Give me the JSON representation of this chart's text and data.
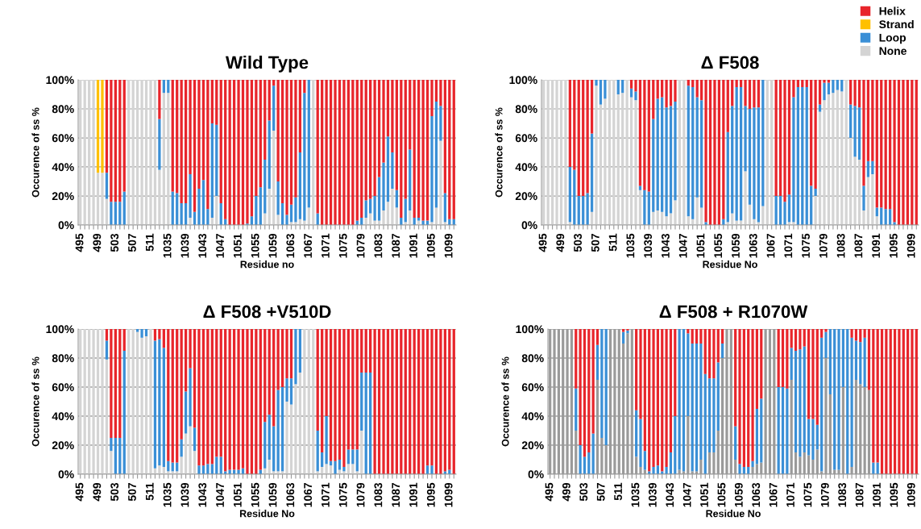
{
  "chart_data": [
    {
      "type": "bar",
      "stacked": true,
      "title": "Wild Type",
      "xlabel": "Residue no",
      "ylabel": "Occurence of ss %",
      "grid": "y",
      "ylim": [
        0,
        100
      ],
      "yticks": [
        {
          "value": 0,
          "label": "0%"
        },
        {
          "value": 20,
          "label": "20%"
        },
        {
          "value": 40,
          "label": "40%"
        },
        {
          "value": 60,
          "label": "60%"
        },
        {
          "value": 80,
          "label": "80%"
        },
        {
          "value": 100,
          "label": "100%"
        }
      ],
      "categories": [
        "495",
        null,
        null,
        null,
        "499",
        null,
        null,
        null,
        "503",
        null,
        null,
        null,
        "507",
        null,
        null,
        null,
        "511",
        null,
        null,
        null,
        "1035",
        null,
        null,
        null,
        "1039",
        null,
        null,
        null,
        "1043",
        null,
        null,
        null,
        "1047",
        null,
        null,
        null,
        "1051",
        null,
        null,
        null,
        "1055",
        null,
        null,
        null,
        "1059",
        null,
        null,
        null,
        "1063",
        null,
        null,
        null,
        "1067",
        null,
        null,
        null,
        "1071",
        null,
        null,
        null,
        "1075",
        null,
        null,
        null,
        "1079",
        null,
        null,
        null,
        "1083",
        null,
        null,
        null,
        "1087",
        null,
        null,
        null,
        "1091",
        null,
        null,
        null,
        "1095",
        null,
        null,
        null,
        "1099",
        null
      ],
      "series": [
        {
          "color": "#d4d4d4",
          "values": [
            100,
            100,
            100,
            100,
            36,
            36,
            18,
            0,
            0,
            0,
            0,
            100,
            100,
            100,
            100,
            100,
            100,
            100,
            38,
            91,
            91,
            0,
            0,
            0,
            0,
            5,
            0,
            0,
            0,
            0,
            5,
            20,
            0,
            0,
            0,
            0,
            0,
            0,
            0,
            0,
            0,
            0,
            8,
            25,
            65,
            7,
            0,
            0,
            2,
            2,
            4,
            3,
            12,
            100,
            0,
            0,
            0,
            0,
            0,
            0,
            0,
            0,
            0,
            0,
            0,
            5,
            8,
            3,
            3,
            10,
            16,
            25,
            12,
            0,
            2,
            10,
            0,
            3,
            0,
            0,
            2,
            12,
            58,
            2,
            0,
            0
          ]
        },
        {
          "color": "#3a8fd6",
          "values": [
            0,
            0,
            0,
            0,
            0,
            0,
            18,
            16,
            16,
            16,
            23,
            0,
            0,
            0,
            0,
            0,
            0,
            0,
            35,
            9,
            9,
            23,
            22,
            15,
            15,
            30,
            9,
            25,
            31,
            11,
            65,
            49,
            15,
            4,
            0,
            0,
            0,
            0,
            1,
            6,
            20,
            26,
            37,
            47,
            31,
            23,
            15,
            7,
            12,
            17,
            46,
            88,
            88,
            0,
            8,
            0,
            0,
            0,
            0,
            0,
            0,
            0,
            0,
            3,
            5,
            12,
            10,
            17,
            30,
            33,
            45,
            25,
            12,
            5,
            16,
            42,
            5,
            2,
            3,
            3,
            73,
            73,
            24,
            20,
            4,
            4
          ]
        },
        {
          "color": "#ffc000",
          "values": [
            0,
            0,
            0,
            0,
            64,
            64,
            0,
            0,
            0,
            0,
            0,
            0,
            0,
            0,
            0,
            0,
            0,
            0,
            0,
            0,
            0,
            0,
            0,
            0,
            0,
            0,
            0,
            0,
            0,
            0,
            0,
            0,
            0,
            0,
            0,
            0,
            0,
            0,
            0,
            0,
            0,
            0,
            0,
            0,
            0,
            0,
            0,
            0,
            0,
            0,
            0,
            0,
            0,
            0,
            0,
            0,
            0,
            0,
            0,
            0,
            0,
            0,
            0,
            0,
            0,
            0,
            0,
            0,
            0,
            0,
            0,
            0,
            0,
            0,
            0,
            0,
            0,
            0,
            0,
            0,
            0,
            0,
            0,
            0,
            0,
            0
          ]
        },
        {
          "color": "#e8252b",
          "values": [
            0,
            0,
            0,
            0,
            0,
            0,
            64,
            84,
            84,
            84,
            77,
            0,
            0,
            0,
            0,
            0,
            0,
            0,
            27,
            0,
            0,
            77,
            78,
            85,
            85,
            65,
            91,
            75,
            69,
            89,
            30,
            31,
            85,
            96,
            100,
            100,
            100,
            100,
            99,
            94,
            80,
            74,
            55,
            28,
            4,
            70,
            85,
            93,
            86,
            81,
            50,
            9,
            0,
            0,
            92,
            100,
            100,
            100,
            100,
            100,
            100,
            100,
            100,
            97,
            95,
            83,
            82,
            80,
            67,
            57,
            39,
            50,
            76,
            95,
            82,
            48,
            95,
            95,
            97,
            97,
            25,
            15,
            18,
            78,
            96,
            96
          ]
        }
      ]
    },
    {
      "type": "bar",
      "stacked": true,
      "title": "Δ F508",
      "xlabel": "Residue No",
      "ylabel": "Occurence of ss %",
      "grid": "y",
      "ylim": [
        0,
        100
      ],
      "legend": "top right",
      "yticks": [
        {
          "value": 0,
          "label": "0%"
        },
        {
          "value": 20,
          "label": "20%"
        },
        {
          "value": 40,
          "label": "40%"
        },
        {
          "value": 60,
          "label": "60%"
        },
        {
          "value": 80,
          "label": "80%"
        },
        {
          "value": 100,
          "label": "100%"
        }
      ],
      "categories": [
        "495",
        null,
        null,
        null,
        "499",
        null,
        null,
        null,
        "503",
        null,
        null,
        null,
        "507",
        null,
        null,
        null,
        "511",
        null,
        null,
        null,
        "1035",
        null,
        null,
        null,
        "1039",
        null,
        null,
        null,
        "1043",
        null,
        null,
        null,
        "1047",
        null,
        null,
        null,
        "1051",
        null,
        null,
        null,
        "1055",
        null,
        null,
        null,
        "1059",
        null,
        null,
        null,
        "1063",
        null,
        null,
        null,
        "1067",
        null,
        null,
        null,
        "1071",
        null,
        null,
        null,
        "1075",
        null,
        null,
        null,
        "1079",
        null,
        null,
        null,
        "1083",
        null,
        null,
        null,
        "1087",
        null,
        null,
        null,
        "1091",
        null,
        null,
        null,
        "1095",
        null,
        null,
        null,
        "1099",
        null
      ],
      "series": [
        {
          "name": "None",
          "color": "#d4d4d4",
          "values": [
            100,
            100,
            100,
            100,
            100,
            100,
            2,
            0,
            0,
            0,
            0,
            9,
            96,
            83,
            87,
            100,
            100,
            90,
            91,
            100,
            88,
            86,
            24,
            0,
            0,
            9,
            10,
            9,
            6,
            8,
            17,
            100,
            100,
            6,
            4,
            19,
            12,
            0,
            0,
            0,
            0,
            0,
            2,
            8,
            3,
            3,
            37,
            14,
            4,
            2,
            13,
            100,
            100,
            0,
            0,
            0,
            2,
            2,
            0,
            0,
            0,
            0,
            20,
            78,
            86,
            90,
            91,
            93,
            92,
            100,
            60,
            47,
            45,
            10,
            33,
            35,
            6,
            0,
            0,
            0,
            0,
            0,
            0,
            0,
            0,
            0
          ]
        },
        {
          "name": "Loop",
          "color": "#3a8fd6",
          "values": [
            0,
            0,
            0,
            0,
            0,
            0,
            38,
            38,
            20,
            20,
            22,
            54,
            4,
            17,
            13,
            0,
            0,
            10,
            9,
            0,
            6,
            6,
            3,
            24,
            23,
            64,
            77,
            79,
            75,
            74,
            68,
            0,
            0,
            90,
            91,
            69,
            74,
            2,
            0,
            0,
            0,
            4,
            62,
            74,
            92,
            92,
            45,
            66,
            77,
            79,
            87,
            0,
            0,
            20,
            20,
            16,
            19,
            86,
            95,
            95,
            95,
            27,
            5,
            5,
            12,
            8,
            9,
            7,
            8,
            0,
            23,
            35,
            36,
            17,
            11,
            9,
            6,
            12,
            11,
            11,
            2,
            0,
            0,
            0,
            0,
            0
          ]
        },
        {
          "name": "Strand",
          "color": "#ffc000",
          "values": [
            0,
            0,
            0,
            0,
            0,
            0,
            0,
            0,
            0,
            0,
            0,
            0,
            0,
            0,
            0,
            0,
            0,
            0,
            0,
            0,
            0,
            0,
            0,
            0,
            0,
            0,
            0,
            0,
            0,
            0,
            0,
            0,
            0,
            0,
            0,
            0,
            0,
            0,
            0,
            0,
            0,
            0,
            0,
            0,
            0,
            0,
            0,
            0,
            0,
            0,
            0,
            0,
            0,
            0,
            0,
            0,
            0,
            0,
            0,
            0,
            0,
            0,
            0,
            0,
            0,
            0,
            0,
            0,
            0,
            0,
            0,
            0,
            0,
            0,
            0,
            0,
            0,
            0,
            0,
            0,
            0,
            0,
            0,
            0,
            0,
            0
          ]
        },
        {
          "name": "Helix",
          "color": "#e8252b",
          "values": [
            0,
            0,
            0,
            0,
            0,
            0,
            60,
            62,
            80,
            80,
            78,
            37,
            0,
            0,
            0,
            0,
            0,
            0,
            0,
            0,
            6,
            8,
            73,
            76,
            77,
            27,
            13,
            12,
            19,
            18,
            15,
            0,
            0,
            4,
            5,
            12,
            14,
            98,
            100,
            100,
            100,
            96,
            36,
            18,
            5,
            5,
            18,
            20,
            19,
            19,
            0,
            0,
            0,
            80,
            80,
            84,
            79,
            12,
            5,
            5,
            5,
            73,
            75,
            17,
            2,
            2,
            0,
            0,
            0,
            0,
            17,
            18,
            19,
            73,
            56,
            56,
            88,
            88,
            89,
            89,
            98,
            100,
            100,
            100,
            100,
            100
          ]
        }
      ]
    },
    {
      "type": "bar",
      "stacked": true,
      "title": "Δ F508 +V510D",
      "xlabel": "Residue No",
      "ylabel": "Occurence of ss %",
      "grid": "y",
      "ylim": [
        0,
        100
      ],
      "yticks": [
        {
          "value": 0,
          "label": "0%"
        },
        {
          "value": 20,
          "label": "20%"
        },
        {
          "value": 40,
          "label": "40%"
        },
        {
          "value": 60,
          "label": "60%"
        },
        {
          "value": 80,
          "label": "80%"
        },
        {
          "value": 100,
          "label": "100%"
        }
      ],
      "categories": [
        "495",
        null,
        null,
        null,
        "499",
        null,
        null,
        null,
        "503",
        null,
        null,
        null,
        "507",
        null,
        null,
        null,
        "511",
        null,
        null,
        null,
        "1035",
        null,
        null,
        null,
        "1039",
        null,
        null,
        null,
        "1043",
        null,
        null,
        null,
        "1047",
        null,
        null,
        null,
        "1051",
        null,
        null,
        null,
        "1055",
        null,
        null,
        null,
        "1059",
        null,
        null,
        null,
        "1063",
        null,
        null,
        null,
        "1067",
        null,
        null,
        null,
        "1071",
        null,
        null,
        null,
        "1075",
        null,
        null,
        null,
        "1079",
        null,
        null,
        null,
        "1083",
        null,
        null,
        null,
        "1087",
        null,
        null,
        null,
        "1091",
        null,
        null,
        null,
        "1095",
        null,
        null,
        null,
        "1099",
        null
      ],
      "series": [
        {
          "color": "#d4d4d4",
          "values": [
            100,
            100,
            100,
            100,
            100,
            100,
            79,
            16,
            0,
            0,
            0,
            100,
            100,
            98,
            94,
            95,
            100,
            4,
            6,
            5,
            2,
            2,
            2,
            12,
            28,
            33,
            16,
            0,
            0,
            0,
            0,
            0,
            0,
            0,
            0,
            0,
            0,
            0,
            0,
            0,
            0,
            0,
            4,
            10,
            2,
            2,
            2,
            50,
            48,
            62,
            70,
            100,
            100,
            100,
            2,
            5,
            7,
            6,
            0,
            3,
            2,
            7,
            7,
            2,
            30,
            0,
            0,
            0,
            0,
            0,
            0,
            0,
            0,
            0,
            0,
            0,
            0,
            0,
            0,
            0,
            0,
            0,
            0,
            0,
            0,
            0
          ]
        },
        {
          "color": "#3a8fd6",
          "values": [
            0,
            0,
            0,
            0,
            0,
            0,
            13,
            9,
            25,
            25,
            85,
            0,
            0,
            2,
            6,
            5,
            0,
            88,
            87,
            82,
            7,
            6,
            6,
            12,
            29,
            40,
            16,
            6,
            6,
            7,
            7,
            12,
            12,
            2,
            3,
            3,
            3,
            4,
            0,
            0,
            0,
            3,
            32,
            31,
            31,
            56,
            58,
            16,
            18,
            38,
            30,
            0,
            0,
            0,
            28,
            10,
            33,
            3,
            9,
            7,
            3,
            10,
            10,
            15,
            40,
            70,
            70,
            0,
            0,
            0,
            0,
            0,
            0,
            0,
            0,
            0,
            0,
            0,
            0,
            6,
            6,
            0,
            0,
            2,
            3,
            0
          ]
        },
        {
          "color": "#e8252b",
          "values": [
            0,
            0,
            0,
            0,
            0,
            0,
            8,
            75,
            75,
            75,
            15,
            0,
            0,
            0,
            0,
            0,
            0,
            8,
            7,
            13,
            91,
            92,
            92,
            76,
            43,
            27,
            68,
            94,
            94,
            93,
            93,
            88,
            88,
            98,
            97,
            97,
            97,
            96,
            100,
            100,
            100,
            97,
            64,
            59,
            67,
            42,
            40,
            34,
            34,
            0,
            0,
            0,
            0,
            0,
            70,
            85,
            60,
            91,
            91,
            90,
            95,
            83,
            83,
            83,
            30,
            30,
            30,
            100,
            100,
            100,
            100,
            100,
            100,
            100,
            100,
            100,
            100,
            100,
            100,
            94,
            94,
            100,
            100,
            98,
            97,
            100
          ]
        }
      ]
    },
    {
      "type": "bar",
      "stacked": true,
      "title": "Δ F508 + R1070W",
      "xlabel": "Residue No",
      "ylabel": "Occurence of ss %",
      "grid": "y",
      "ylim": [
        0,
        100
      ],
      "yticks": [
        {
          "value": 0,
          "label": "0%"
        },
        {
          "value": 20,
          "label": "20%"
        },
        {
          "value": 40,
          "label": "40%"
        },
        {
          "value": 60,
          "label": "60%"
        },
        {
          "value": 80,
          "label": "80%"
        },
        {
          "value": 100,
          "label": "100%"
        }
      ],
      "categories": [
        "495",
        null,
        null,
        null,
        "499",
        null,
        null,
        null,
        "503",
        null,
        null,
        null,
        "507",
        null,
        null,
        null,
        "511",
        null,
        null,
        null,
        "1035",
        null,
        null,
        null,
        "1039",
        null,
        null,
        null,
        "1043",
        null,
        null,
        null,
        "1047",
        null,
        null,
        null,
        "1051",
        null,
        null,
        null,
        "1055",
        null,
        null,
        null,
        "1059",
        null,
        null,
        null,
        "1063",
        null,
        null,
        null,
        "1067",
        null,
        null,
        null,
        "1071",
        null,
        null,
        null,
        "1075",
        null,
        null,
        null,
        "1079",
        null,
        null,
        null,
        "1083",
        null,
        null,
        null,
        "1087",
        null,
        null,
        null,
        "1091",
        null,
        null,
        null,
        "1095",
        null,
        null,
        null,
        "1099",
        null
      ],
      "series": [
        {
          "color": "#9a9a9a",
          "values": [
            100,
            100,
            100,
            100,
            100,
            100,
            30,
            0,
            0,
            0,
            0,
            65,
            25,
            20,
            100,
            100,
            100,
            90,
            97,
            100,
            12,
            5,
            3,
            0,
            0,
            0,
            0,
            0,
            0,
            0,
            3,
            2,
            40,
            2,
            2,
            10,
            0,
            15,
            15,
            30,
            80,
            100,
            100,
            10,
            0,
            0,
            0,
            5,
            7,
            8,
            100,
            100,
            100,
            0,
            0,
            0,
            65,
            15,
            12,
            15,
            13,
            10,
            17,
            2,
            80,
            55,
            3,
            3,
            60,
            0,
            5,
            65,
            62,
            60,
            58,
            0,
            0,
            0,
            0,
            0,
            0,
            0,
            0,
            0,
            0,
            0
          ]
        },
        {
          "color": "#3a8fd6",
          "values": [
            0,
            0,
            0,
            0,
            0,
            0,
            29,
            20,
            12,
            15,
            28,
            24,
            75,
            80,
            0,
            0,
            0,
            8,
            2,
            0,
            32,
            33,
            13,
            2,
            5,
            6,
            2,
            5,
            15,
            40,
            97,
            98,
            57,
            88,
            88,
            80,
            69,
            51,
            51,
            47,
            10,
            0,
            0,
            23,
            7,
            5,
            5,
            4,
            38,
            44,
            0,
            0,
            0,
            60,
            60,
            59,
            22,
            70,
            74,
            73,
            25,
            28,
            17,
            92,
            18,
            45,
            97,
            97,
            40,
            100,
            89,
            27,
            29,
            34,
            0,
            8,
            8,
            0,
            0,
            0,
            0,
            0,
            0,
            0,
            0,
            0
          ]
        },
        {
          "color": "#e8252b",
          "values": [
            0,
            0,
            0,
            0,
            0,
            0,
            41,
            80,
            88,
            85,
            72,
            11,
            0,
            0,
            0,
            0,
            0,
            2,
            1,
            0,
            56,
            62,
            84,
            98,
            95,
            94,
            98,
            95,
            85,
            60,
            0,
            0,
            3,
            10,
            10,
            10,
            31,
            34,
            34,
            23,
            10,
            0,
            0,
            67,
            93,
            95,
            95,
            91,
            55,
            48,
            0,
            0,
            0,
            40,
            40,
            41,
            13,
            15,
            14,
            12,
            62,
            62,
            66,
            6,
            2,
            0,
            0,
            0,
            0,
            0,
            6,
            8,
            9,
            6,
            42,
            92,
            92,
            100,
            100,
            100,
            100,
            100,
            100,
            100,
            100,
            100
          ]
        }
      ]
    }
  ]
}
